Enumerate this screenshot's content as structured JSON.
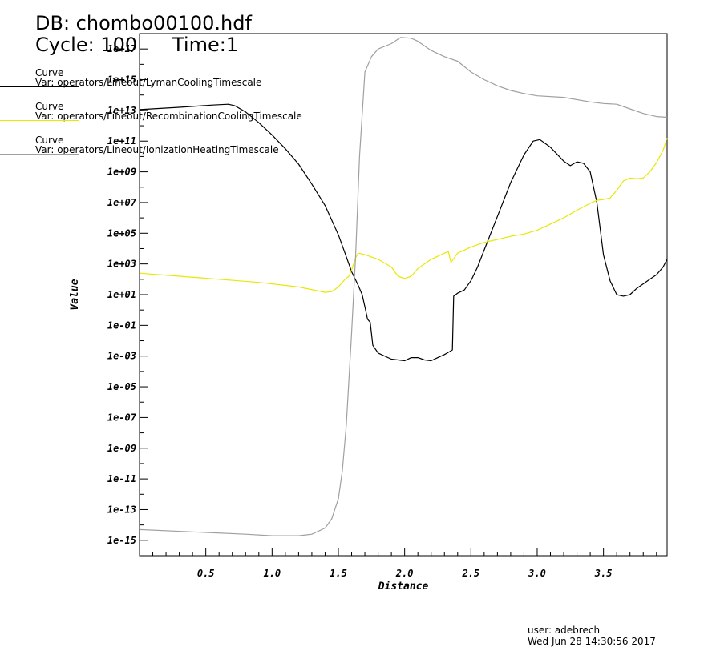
{
  "header": {
    "db_line": "DB: chombo00100.hdf",
    "cycle_line": "Cycle: 100",
    "time_line": "Time:1"
  },
  "legend": [
    {
      "title": "Curve",
      "var": "Var: operators/Lineout/LymanCoolingTimescale",
      "color": "#000000"
    },
    {
      "title": "Curve",
      "var": "Var: operators/Lineout/RecombinationCoolingTimescale",
      "color": "#e8e800"
    },
    {
      "title": "Curve",
      "var": "Var: operators/Lineout/IonizationHeatingTimescale",
      "color": "#a0a0a0"
    }
  ],
  "footer": {
    "user": "user: adebrech",
    "date": "Wed Jun 28 14:30:56 2017"
  },
  "chart_data": {
    "type": "line",
    "title": "",
    "xlabel": "Distance",
    "ylabel": "Value",
    "xlim": [
      0.0,
      3.98
    ],
    "ylim": [
      -16,
      18
    ],
    "y_scale": "log10",
    "x_ticks": [
      "0.5",
      "1.0",
      "1.5",
      "2.0",
      "2.5",
      "3.0",
      "3.5"
    ],
    "y_ticks": [
      "1e+17",
      "1e+15",
      "1e+13",
      "1e+11",
      "1e+09",
      "1e+07",
      "1e+05",
      "1e+03",
      "1e+01",
      "1e-01",
      "1e-03",
      "1e-05",
      "1e-07",
      "1e-09",
      "1e-11",
      "1e-13",
      "1e-15"
    ],
    "grid": false,
    "series": [
      {
        "name": "LymanCoolingTimescale",
        "color": "#000000",
        "points": [
          [
            0.0,
            13.05
          ],
          [
            0.3,
            13.2
          ],
          [
            0.55,
            13.35
          ],
          [
            0.67,
            13.4
          ],
          [
            0.72,
            13.3
          ],
          [
            0.8,
            12.9
          ],
          [
            0.9,
            12.2
          ],
          [
            1.0,
            11.4
          ],
          [
            1.1,
            10.5
          ],
          [
            1.2,
            9.5
          ],
          [
            1.3,
            8.2
          ],
          [
            1.4,
            6.8
          ],
          [
            1.5,
            4.9
          ],
          [
            1.55,
            3.7
          ],
          [
            1.6,
            2.5
          ],
          [
            1.65,
            1.6
          ],
          [
            1.68,
            1.0
          ],
          [
            1.7,
            0.2
          ],
          [
            1.72,
            -0.6
          ],
          [
            1.74,
            -0.8
          ],
          [
            1.76,
            -2.3
          ],
          [
            1.8,
            -2.8
          ],
          [
            1.9,
            -3.2
          ],
          [
            2.0,
            -3.3
          ],
          [
            2.05,
            -3.1
          ],
          [
            2.1,
            -3.1
          ],
          [
            2.15,
            -3.25
          ],
          [
            2.2,
            -3.3
          ],
          [
            2.25,
            -3.1
          ],
          [
            2.3,
            -2.9
          ],
          [
            2.34,
            -2.7
          ],
          [
            2.36,
            -2.6
          ],
          [
            2.37,
            0.9
          ],
          [
            2.4,
            1.1
          ],
          [
            2.45,
            1.3
          ],
          [
            2.5,
            1.9
          ],
          [
            2.55,
            2.8
          ],
          [
            2.6,
            3.9
          ],
          [
            2.7,
            6.1
          ],
          [
            2.8,
            8.3
          ],
          [
            2.9,
            10.1
          ],
          [
            2.97,
            11.0
          ],
          [
            3.02,
            11.1
          ],
          [
            3.1,
            10.6
          ],
          [
            3.2,
            9.7
          ],
          [
            3.25,
            9.4
          ],
          [
            3.3,
            9.65
          ],
          [
            3.35,
            9.55
          ],
          [
            3.4,
            9.0
          ],
          [
            3.45,
            7.0
          ],
          [
            3.5,
            3.6
          ],
          [
            3.55,
            1.9
          ],
          [
            3.6,
            1.0
          ],
          [
            3.65,
            0.9
          ],
          [
            3.7,
            1.0
          ],
          [
            3.75,
            1.4
          ],
          [
            3.8,
            1.7
          ],
          [
            3.85,
            2.0
          ],
          [
            3.9,
            2.3
          ],
          [
            3.95,
            2.8
          ],
          [
            3.98,
            3.3
          ]
        ]
      },
      {
        "name": "RecombinationCoolingTimescale",
        "color": "#e8e800",
        "points": [
          [
            0.0,
            2.4
          ],
          [
            0.3,
            2.2
          ],
          [
            0.6,
            2.0
          ],
          [
            0.9,
            1.8
          ],
          [
            1.2,
            1.5
          ],
          [
            1.4,
            1.15
          ],
          [
            1.45,
            1.2
          ],
          [
            1.5,
            1.5
          ],
          [
            1.55,
            2.0
          ],
          [
            1.58,
            2.2
          ],
          [
            1.6,
            2.6
          ],
          [
            1.63,
            3.4
          ],
          [
            1.65,
            3.7
          ],
          [
            1.7,
            3.6
          ],
          [
            1.8,
            3.3
          ],
          [
            1.9,
            2.8
          ],
          [
            1.95,
            2.2
          ],
          [
            2.0,
            2.05
          ],
          [
            2.05,
            2.2
          ],
          [
            2.1,
            2.7
          ],
          [
            2.2,
            3.3
          ],
          [
            2.3,
            3.7
          ],
          [
            2.33,
            3.8
          ],
          [
            2.35,
            3.1
          ],
          [
            2.4,
            3.7
          ],
          [
            2.5,
            4.1
          ],
          [
            2.6,
            4.4
          ],
          [
            2.7,
            4.6
          ],
          [
            2.8,
            4.8
          ],
          [
            2.9,
            4.95
          ],
          [
            3.0,
            5.2
          ],
          [
            3.1,
            5.6
          ],
          [
            3.2,
            6.0
          ],
          [
            3.3,
            6.5
          ],
          [
            3.4,
            6.95
          ],
          [
            3.45,
            7.15
          ],
          [
            3.5,
            7.2
          ],
          [
            3.55,
            7.3
          ],
          [
            3.6,
            7.8
          ],
          [
            3.65,
            8.4
          ],
          [
            3.7,
            8.6
          ],
          [
            3.75,
            8.55
          ],
          [
            3.8,
            8.6
          ],
          [
            3.85,
            9.0
          ],
          [
            3.9,
            9.6
          ],
          [
            3.95,
            10.4
          ],
          [
            3.98,
            11.2
          ]
        ]
      },
      {
        "name": "IonizationHeatingTimescale",
        "color": "#a0a0a0",
        "points": [
          [
            0.0,
            -14.3
          ],
          [
            0.4,
            -14.45
          ],
          [
            0.8,
            -14.6
          ],
          [
            1.0,
            -14.7
          ],
          [
            1.2,
            -14.7
          ],
          [
            1.3,
            -14.6
          ],
          [
            1.4,
            -14.2
          ],
          [
            1.45,
            -13.6
          ],
          [
            1.5,
            -12.3
          ],
          [
            1.53,
            -10.5
          ],
          [
            1.56,
            -7.5
          ],
          [
            1.6,
            -1.5
          ],
          [
            1.63,
            3.5
          ],
          [
            1.66,
            10.0
          ],
          [
            1.7,
            15.5
          ],
          [
            1.75,
            16.5
          ],
          [
            1.8,
            17.0
          ],
          [
            1.9,
            17.35
          ],
          [
            1.97,
            17.75
          ],
          [
            2.05,
            17.7
          ],
          [
            2.1,
            17.5
          ],
          [
            2.2,
            16.9
          ],
          [
            2.3,
            16.5
          ],
          [
            2.4,
            16.2
          ],
          [
            2.5,
            15.5
          ],
          [
            2.6,
            15.0
          ],
          [
            2.7,
            14.6
          ],
          [
            2.8,
            14.3
          ],
          [
            2.9,
            14.1
          ],
          [
            3.0,
            13.95
          ],
          [
            3.2,
            13.85
          ],
          [
            3.4,
            13.55
          ],
          [
            3.5,
            13.45
          ],
          [
            3.6,
            13.4
          ],
          [
            3.7,
            13.1
          ],
          [
            3.8,
            12.8
          ],
          [
            3.9,
            12.6
          ],
          [
            3.98,
            12.55
          ]
        ]
      }
    ]
  }
}
